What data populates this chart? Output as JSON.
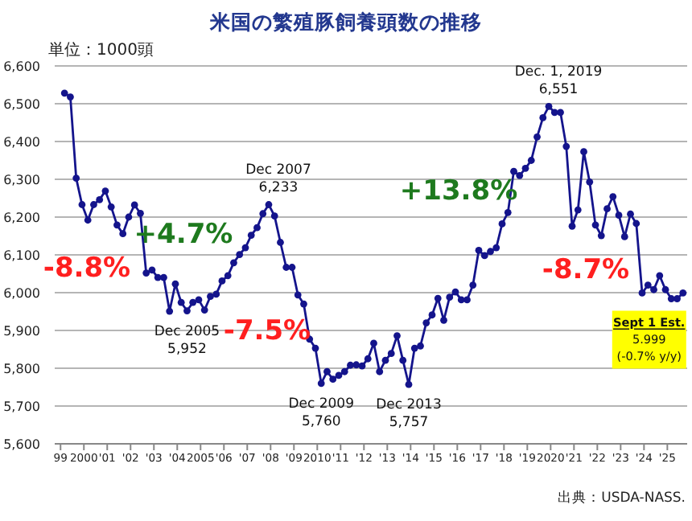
{
  "chart_data": {
    "type": "line",
    "title": "米国の繁殖豚飼養頭数の推移",
    "subtitle": "単位：1000頭",
    "x": [
      1999.17,
      1999.42,
      1999.67,
      1999.92,
      2000.17,
      2000.42,
      2000.67,
      2000.92,
      2001.17,
      2001.42,
      2001.67,
      2001.92,
      2002.17,
      2002.42,
      2002.67,
      2002.92,
      2003.17,
      2003.42,
      2003.67,
      2003.92,
      2004.17,
      2004.42,
      2004.67,
      2004.92,
      2005.17,
      2005.42,
      2005.67,
      2005.92,
      2006.17,
      2006.42,
      2006.67,
      2006.92,
      2007.17,
      2007.42,
      2007.67,
      2007.92,
      2008.17,
      2008.42,
      2008.67,
      2008.92,
      2009.17,
      2009.42,
      2009.67,
      2009.92,
      2010.17,
      2010.42,
      2010.67,
      2010.92,
      2011.17,
      2011.42,
      2011.67,
      2011.92,
      2012.17,
      2012.42,
      2012.67,
      2012.92,
      2013.17,
      2013.42,
      2013.67,
      2013.92,
      2014.17,
      2014.42,
      2014.67,
      2014.92,
      2015.17,
      2015.42,
      2015.67,
      2015.92,
      2016.17,
      2016.42,
      2016.67,
      2016.92,
      2017.17,
      2017.42,
      2017.67,
      2017.92,
      2018.17,
      2018.42,
      2018.67,
      2018.92,
      2019.17,
      2019.42,
      2019.67,
      2019.92,
      2020.17,
      2020.42,
      2020.67,
      2020.92,
      2021.17,
      2021.42,
      2021.67,
      2021.92,
      2022.17,
      2022.42,
      2022.67,
      2022.92,
      2023.17,
      2023.42,
      2023.67,
      2023.92,
      2024.17,
      2024.42,
      2024.67,
      2024.92,
      2025.17,
      2025.42,
      2025.67
    ],
    "values": [
      6528,
      6518,
      6303,
      6233,
      6192,
      6233,
      6246,
      6269,
      6227,
      6179,
      6156,
      6200,
      6232,
      6210,
      6052,
      6060,
      6040,
      6040,
      5951,
      6023,
      5974,
      5952,
      5974,
      5981,
      5954,
      5990,
      5996,
      6031,
      6045,
      6079,
      6101,
      6119,
      6152,
      6172,
      6209,
      6233,
      6203,
      6133,
      6067,
      6067,
      5994,
      5970,
      5877,
      5853,
      5760,
      5791,
      5771,
      5781,
      5791,
      5808,
      5809,
      5806,
      5825,
      5866,
      5791,
      5821,
      5839,
      5886,
      5821,
      5757,
      5853,
      5859,
      5920,
      5941,
      5985,
      5927,
      5988,
      6002,
      5981,
      5981,
      6020,
      6112,
      6098,
      6109,
      6119,
      6182,
      6212,
      6321,
      6310,
      6329,
      6350,
      6412,
      6463,
      6493,
      6477,
      6477,
      6387,
      6176,
      6219,
      6373,
      6293,
      6179,
      6151,
      6222,
      6254,
      6205,
      6148,
      6208,
      6183,
      5999,
      6020,
      6008,
      6045,
      6008,
      5984,
      5984,
      5999
    ],
    "color": "#14148c",
    "marker": "circle",
    "grid": "y",
    "xlim": [
      1998.75,
      2025.85
    ],
    "xticks": [
      {
        "value": 1999,
        "label": "99"
      },
      2000,
      {
        "value": 2001,
        "label": "'01"
      },
      {
        "value": 2002,
        "label": "'02"
      },
      {
        "value": 2003,
        "label": "'03"
      },
      {
        "value": 2004,
        "label": "'04"
      },
      2005,
      {
        "value": 2006,
        "label": "'06"
      },
      {
        "value": 2007,
        "label": "'07"
      },
      {
        "value": 2008,
        "label": "'08"
      },
      {
        "value": 2009,
        "label": "'09"
      },
      2010,
      {
        "value": 2011,
        "label": "'11"
      },
      {
        "value": 2012,
        "label": "'12"
      },
      {
        "value": 2013,
        "label": "'13"
      },
      {
        "value": 2014,
        "label": "'14"
      },
      {
        "value": 2015,
        "label": "'15"
      },
      {
        "value": 2016,
        "label": "'16"
      },
      {
        "value": 2017,
        "label": "'17"
      },
      {
        "value": 2018,
        "label": "'18"
      },
      {
        "value": 2019,
        "label": "'19"
      },
      2020,
      {
        "value": 2021,
        "label": "'21"
      },
      {
        "value": 2022,
        "label": "'22"
      },
      {
        "value": 2023,
        "label": "'23"
      },
      {
        "value": 2024,
        "label": "'24"
      },
      {
        "value": 2025,
        "label": "'25"
      }
    ],
    "ylim": [
      5600,
      6600
    ],
    "yticks": [
      {
        "value": 5600,
        "label": "5,600"
      },
      {
        "value": 5700,
        "label": "5,700"
      },
      {
        "value": 5800,
        "label": "5,800"
      },
      {
        "value": 5900,
        "label": "5,900"
      },
      {
        "value": 6000,
        "label": "6,000"
      },
      {
        "value": 6100,
        "label": "6,100"
      },
      {
        "value": 6200,
        "label": "6,200"
      },
      {
        "value": 6300,
        "label": "6,300"
      },
      {
        "value": 6400,
        "label": "6,400"
      },
      {
        "value": 6500,
        "label": "6,500"
      },
      {
        "value": 6600,
        "label": "6,600"
      }
    ],
    "annotations": [
      "-8.8%",
      "+4.7%",
      "-7.5%",
      "+13.8%",
      "-8.7%",
      {
        "text": "Dec 2005\n5,952",
        "x": 2004.42,
        "y": 5952
      },
      {
        "text": "Dec 2007\n6,233",
        "x": 2007.92,
        "y": 6233
      },
      {
        "text": "Dec 2009\n5,760",
        "x": 2010.17,
        "y": 5760
      },
      {
        "text": "Dec 2013\n5,757",
        "x": 2013.92,
        "y": 5757
      },
      {
        "text": "Dec. 1, 2019\n6,551",
        "x": 2019.92,
        "y": 6493
      },
      {
        "text": "Sept 1 Est.\n5.999\n(-0.7% y/y)",
        "x": 2025.67,
        "y": 5999
      },
      "出典：USDA-NASS."
    ]
  }
}
